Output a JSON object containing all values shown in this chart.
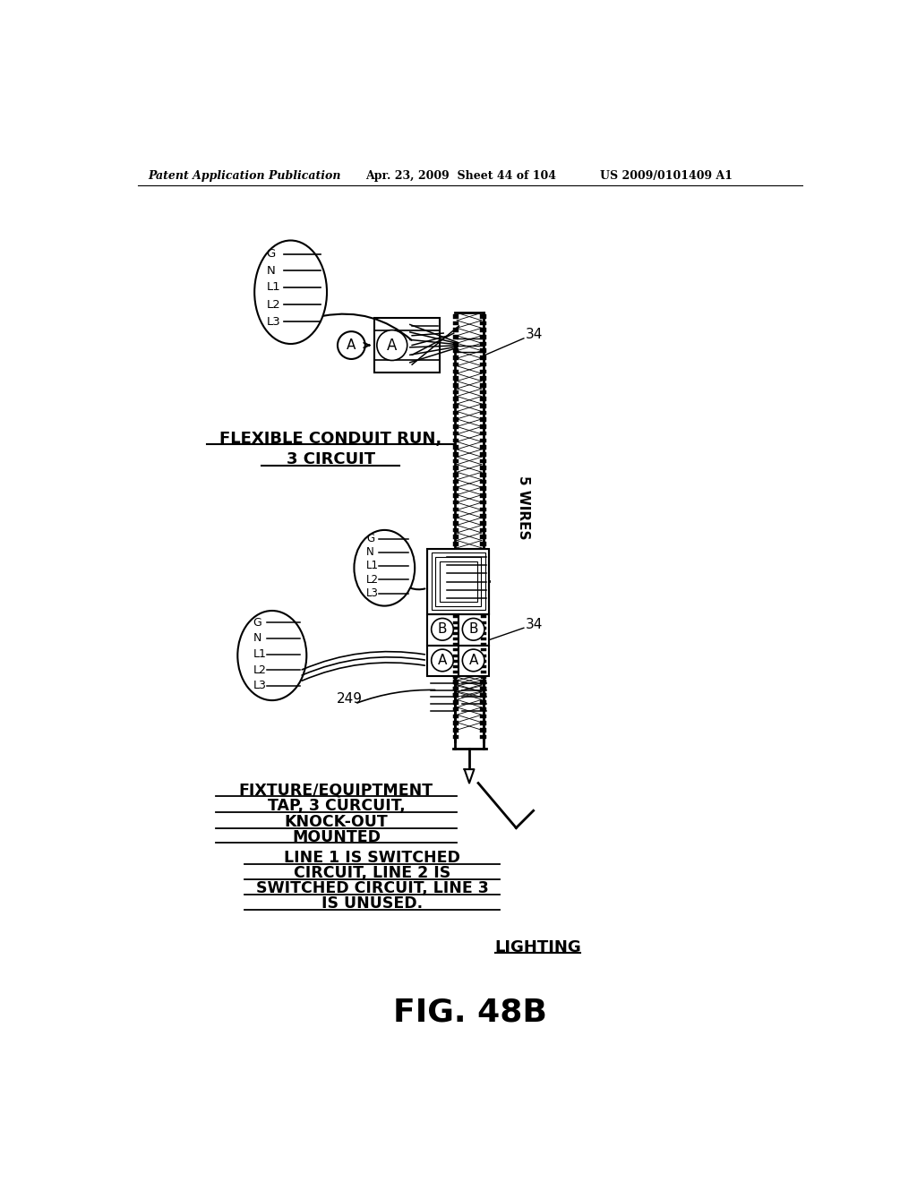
{
  "bg_color": "#ffffff",
  "header_left": "Patent Application Publication",
  "header_mid": "Apr. 23, 2009  Sheet 44 of 104",
  "header_right": "US 2009/0101409 A1",
  "figure_label": "FIG. 48B",
  "label_34_top": "34",
  "label_34_bot": "34",
  "label_249": "249",
  "label_5wires": "5 WIRES",
  "text_flex1": "FLEXIBLE CONDUIT RUN,",
  "text_flex2": "3 CIRCUIT",
  "text_fix1": "FIXTURE/EQUIPTMENT",
  "text_fix2": "TAP, 3 CURCUIT,",
  "text_fix3": "KNOCK-OUT",
  "text_fix4": "MOUNTED",
  "text_sw1": "LINE 1 IS SWITCHED",
  "text_sw2": "CIRCUIT, LINE 2 IS",
  "text_sw3": "SWITCHED CIRCUIT, LINE 3",
  "text_sw4": "IS UNUSED.",
  "text_lighting": "LIGHTING",
  "gnll": [
    "G",
    "N",
    "L1",
    "L2",
    "L3"
  ]
}
